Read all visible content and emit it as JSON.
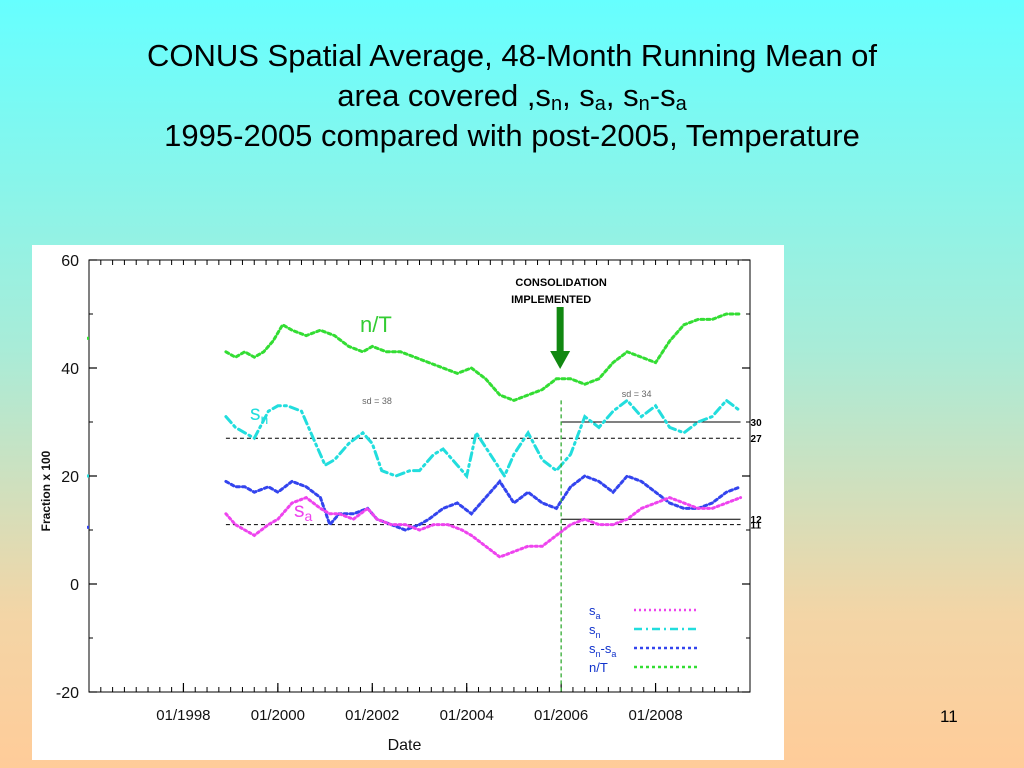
{
  "slide": {
    "title_line1": "CONUS Spatial Average, 48-Month Running Mean of",
    "title_line2_pre": "area covered ,s",
    "sub_n": "n",
    "sep1": ", s",
    "sub_a": "a",
    "sep2": ", s",
    "sep3": "-s",
    "title_line3": "1995-2005 compared with post-2005, Temperature",
    "page_number": "11"
  },
  "chart_data": {
    "type": "line",
    "xlabel": "Date",
    "ylabel": "Fraction x 100",
    "xlim": [
      1996.0,
      2010.0
    ],
    "ylim": [
      -20,
      60
    ],
    "y_ticks": [
      -20,
      0,
      20,
      40,
      60
    ],
    "x_ticks": [
      {
        "value": 1998.0,
        "label": "01/1998"
      },
      {
        "value": 2000.0,
        "label": "01/2000"
      },
      {
        "value": 2002.0,
        "label": "01/2002"
      },
      {
        "value": 2004.0,
        "label": "01/2004"
      },
      {
        "value": 2006.0,
        "label": "01/2006"
      },
      {
        "value": 2008.0,
        "label": "01/2008"
      }
    ],
    "grid": false,
    "series": [
      {
        "name": "n/T",
        "color": "#33dd33",
        "dash": "3,3",
        "x": [
          1998.9,
          1999.1,
          1999.3,
          1999.5,
          1999.7,
          1999.9,
          2000.1,
          2000.3,
          2000.6,
          2000.9,
          2001.2,
          2001.5,
          2001.8,
          2002.0,
          2002.3,
          2002.6,
          2002.9,
          2003.2,
          2003.5,
          2003.8,
          2004.1,
          2004.4,
          2004.7,
          2005.0,
          2005.3,
          2005.6,
          2005.9,
          2006.2,
          2006.5,
          2006.8,
          2007.1,
          2007.4,
          2007.7,
          2008.0,
          2008.3,
          2008.6,
          2008.9,
          2009.2,
          2009.5,
          2009.8
        ],
        "y": [
          43,
          42,
          43,
          42,
          43,
          45,
          48,
          47,
          46,
          47,
          46,
          44,
          43,
          44,
          43,
          43,
          42,
          41,
          40,
          39,
          40,
          38,
          35,
          34,
          35,
          36,
          38,
          38,
          37,
          38,
          41,
          43,
          42,
          41,
          45,
          48,
          49,
          49,
          50,
          50
        ]
      },
      {
        "name": "sn",
        "color": "#22dddd",
        "dash": "8,4,2,4",
        "x": [
          1998.9,
          1999.1,
          1999.3,
          1999.5,
          1999.8,
          2000.0,
          2000.2,
          2000.5,
          2000.8,
          2001.0,
          2001.2,
          2001.5,
          2001.8,
          2002.0,
          2002.2,
          2002.5,
          2002.8,
          2003.0,
          2003.3,
          2003.5,
          2003.8,
          2004.0,
          2004.2,
          2004.5,
          2004.8,
          2005.0,
          2005.3,
          2005.6,
          2005.9,
          2006.2,
          2006.5,
          2006.8,
          2007.1,
          2007.4,
          2007.7,
          2008.0,
          2008.3,
          2008.6,
          2008.9,
          2009.2,
          2009.5,
          2009.8
        ],
        "y": [
          31,
          29,
          28,
          27,
          32,
          33,
          33,
          32,
          26,
          22,
          23,
          26,
          28,
          26,
          21,
          20,
          21,
          21,
          24,
          25,
          22,
          20,
          28,
          24,
          20,
          24,
          28,
          23,
          21,
          24,
          31,
          29,
          32,
          34,
          31,
          33,
          29,
          28,
          30,
          31,
          34,
          32
        ]
      },
      {
        "name": "sn-sa",
        "color": "#3344ee",
        "dash": "3,3",
        "x": [
          1998.9,
          1999.1,
          1999.3,
          1999.5,
          1999.8,
          2000.0,
          2000.3,
          2000.6,
          2000.9,
          2001.1,
          2001.3,
          2001.6,
          2001.9,
          2002.1,
          2002.4,
          2002.7,
          2003.0,
          2003.2,
          2003.5,
          2003.8,
          2004.1,
          2004.4,
          2004.7,
          2005.0,
          2005.3,
          2005.6,
          2005.9,
          2006.2,
          2006.5,
          2006.8,
          2007.1,
          2007.4,
          2007.7,
          2008.0,
          2008.3,
          2008.6,
          2008.9,
          2009.2,
          2009.5,
          2009.8
        ],
        "y": [
          19,
          18,
          18,
          17,
          18,
          17,
          19,
          18,
          16,
          11,
          13,
          13,
          14,
          12,
          11,
          10,
          11,
          12,
          14,
          15,
          13,
          16,
          19,
          15,
          17,
          15,
          14,
          18,
          20,
          19,
          17,
          20,
          19,
          17,
          15,
          14,
          14,
          15,
          17,
          18
        ]
      },
      {
        "name": "sa",
        "color": "#ee44ee",
        "dash": "2,3",
        "x": [
          1998.9,
          1999.1,
          1999.3,
          1999.5,
          1999.8,
          2000.0,
          2000.3,
          2000.6,
          2000.9,
          2001.1,
          2001.3,
          2001.6,
          2001.9,
          2002.1,
          2002.4,
          2002.7,
          2003.0,
          2003.3,
          2003.6,
          2003.9,
          2004.1,
          2004.4,
          2004.7,
          2005.0,
          2005.3,
          2005.6,
          2005.9,
          2006.2,
          2006.5,
          2006.8,
          2007.1,
          2007.4,
          2007.7,
          2008.0,
          2008.3,
          2008.6,
          2008.9,
          2009.2,
          2009.5,
          2009.8
        ],
        "y": [
          13,
          11,
          10,
          9,
          11,
          12,
          15,
          16,
          14,
          13,
          13,
          12,
          14,
          12,
          11,
          11,
          10,
          11,
          11,
          10,
          9,
          7,
          5,
          6,
          7,
          7,
          9,
          11,
          12,
          11,
          11,
          12,
          14,
          15,
          16,
          15,
          14,
          14,
          15,
          16
        ]
      }
    ],
    "reference_lines": [
      {
        "y": 27,
        "x_from": 1998.9,
        "x_to": 2009.8,
        "style": "dashed",
        "label": "27"
      },
      {
        "y": 11,
        "x_from": 1998.9,
        "x_to": 2009.8,
        "style": "dashed",
        "label": "11"
      },
      {
        "y": 30,
        "x_from": 2006.0,
        "x_to": 2009.8,
        "style": "solid",
        "label": "30"
      },
      {
        "y": 12,
        "x_from": 2006.0,
        "x_to": 2009.8,
        "style": "solid",
        "label": "12"
      }
    ],
    "consolidation_line_x": 2006.0,
    "annotations": {
      "consolidation_line1": "CONSOLIDATION",
      "consolidation_line2": "IMPLEMENTED",
      "sd_before": "sd = 38",
      "sd_after": "sd = 34",
      "label_nT": "n/T",
      "label_sn_base": "s",
      "label_sn_sub": "n",
      "label_sa_base": "s",
      "label_sa_sub": "a"
    },
    "legend": {
      "placement": "bottom-right",
      "entries": [
        {
          "base": "s",
          "sub": "a",
          "rest": "",
          "rest_sub": "",
          "series": "sa"
        },
        {
          "base": "s",
          "sub": "n",
          "rest": "",
          "rest_sub": "",
          "series": "sn"
        },
        {
          "base": "s",
          "sub": "n",
          "rest": "-s",
          "rest_sub": "a",
          "series": "sn-sa"
        },
        {
          "base": "n/T",
          "sub": "",
          "rest": "",
          "rest_sub": "",
          "series": "n/T"
        }
      ]
    },
    "colors": {
      "arrow": "#118811",
      "consolidation_line": "#33aa33",
      "reference_line": "#000000"
    }
  }
}
